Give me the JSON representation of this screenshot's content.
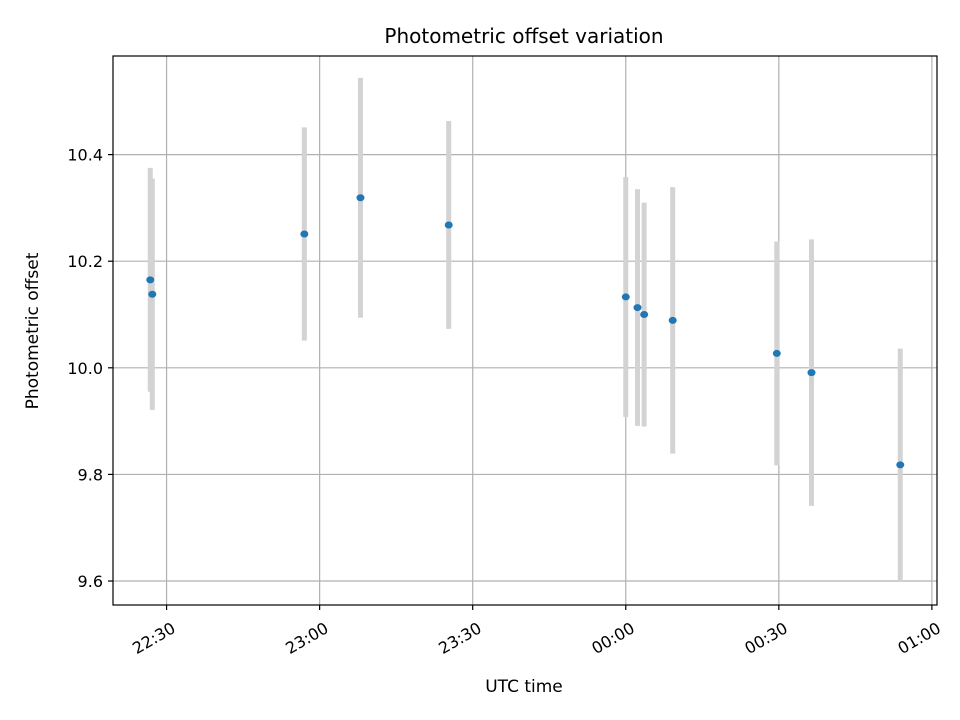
{
  "chart_data": {
    "type": "scatter",
    "title": "Photometric offset variation",
    "xlabel": "UTC time",
    "ylabel": "Photometric offset",
    "x_ticks": [
      "22:30",
      "23:00",
      "23:30",
      "00:00",
      "00:30",
      "01:00"
    ],
    "x_tick_minutes": [
      0,
      30,
      60,
      90,
      120,
      150
    ],
    "y_ticks": [
      "9.6",
      "9.8",
      "10.0",
      "10.2",
      "10.4"
    ],
    "xlim_minutes": [
      -10.5,
      151
    ],
    "ylim": [
      9.555,
      10.585
    ],
    "grid": true,
    "point_color": "#1f77b4",
    "errorbar_color": "#d3d3d3",
    "points": [
      {
        "time": "22:27",
        "minute": -3.2,
        "y": 10.165,
        "err": 0.21
      },
      {
        "time": "22:27",
        "minute": -2.8,
        "y": 10.138,
        "err": 0.217
      },
      {
        "time": "22:57",
        "minute": 27.0,
        "y": 10.251,
        "err": 0.2
      },
      {
        "time": "23:08",
        "minute": 38.0,
        "y": 10.319,
        "err": 0.225
      },
      {
        "time": "23:25",
        "minute": 55.3,
        "y": 10.268,
        "err": 0.195
      },
      {
        "time": "00:00",
        "minute": 90.0,
        "y": 10.133,
        "err": 0.225
      },
      {
        "time": "00:02",
        "minute": 92.3,
        "y": 10.113,
        "err": 0.222
      },
      {
        "time": "00:03",
        "minute": 93.6,
        "y": 10.1,
        "err": 0.21
      },
      {
        "time": "00:09",
        "minute": 99.2,
        "y": 10.089,
        "err": 0.25
      },
      {
        "time": "00:29",
        "minute": 119.6,
        "y": 10.027,
        "err": 0.21
      },
      {
        "time": "00:36",
        "minute": 126.4,
        "y": 9.991,
        "err": 0.25
      },
      {
        "time": "00:53",
        "minute": 143.8,
        "y": 9.818,
        "err": 0.218
      }
    ]
  }
}
